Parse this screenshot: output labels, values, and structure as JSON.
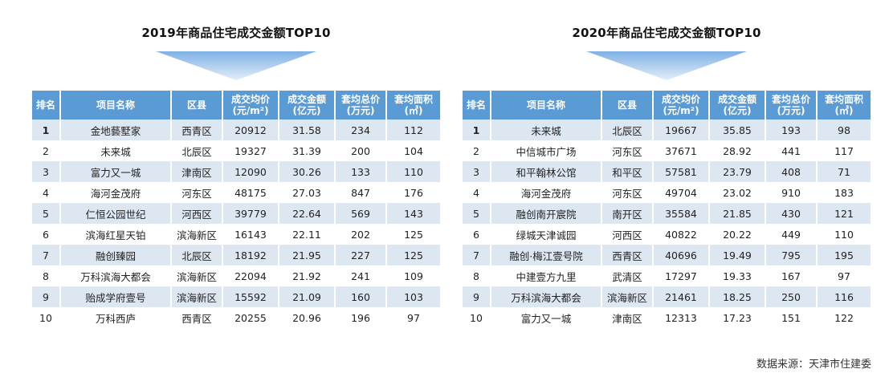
{
  "headers": [
    "排名",
    "项目名称",
    "区县",
    [
      "成交均价",
      "(元/m²)"
    ],
    [
      "成交金额",
      "(亿元)"
    ],
    [
      "套均总价",
      "(万元)"
    ],
    [
      "套均面积",
      "(㎡)"
    ]
  ],
  "tables": [
    {
      "title": "2019年商品住宅成交金额TOP10",
      "rows": [
        {
          "rank": "1",
          "name": "金地藝墅家",
          "district": "西青区",
          "price": "20912",
          "amount": "31.58",
          "total": "234",
          "area": "112"
        },
        {
          "rank": "2",
          "name": "未来城",
          "district": "北辰区",
          "price": "19327",
          "amount": "31.39",
          "total": "200",
          "area": "104"
        },
        {
          "rank": "3",
          "name": "富力又一城",
          "district": "津南区",
          "price": "12090",
          "amount": "30.26",
          "total": "133",
          "area": "110"
        },
        {
          "rank": "4",
          "name": "海河金茂府",
          "district": "河东区",
          "price": "48175",
          "amount": "27.03",
          "total": "847",
          "area": "176"
        },
        {
          "rank": "5",
          "name": "仁恒公园世纪",
          "district": "河西区",
          "price": "39779",
          "amount": "22.64",
          "total": "569",
          "area": "143"
        },
        {
          "rank": "6",
          "name": "滨海红星天铂",
          "district": "滨海新区",
          "price": "16143",
          "amount": "22.11",
          "total": "202",
          "area": "125"
        },
        {
          "rank": "7",
          "name": "融创臻园",
          "district": "北辰区",
          "price": "18192",
          "amount": "21.95",
          "total": "227",
          "area": "125"
        },
        {
          "rank": "8",
          "name": "万科滨海大都会",
          "district": "滨海新区",
          "price": "22094",
          "amount": "21.92",
          "total": "241",
          "area": "109"
        },
        {
          "rank": "9",
          "name": "贻成学府壹号",
          "district": "滨海新区",
          "price": "15592",
          "amount": "21.09",
          "total": "160",
          "area": "103"
        },
        {
          "rank": "10",
          "name": "万科西庐",
          "district": "西青区",
          "price": "20255",
          "amount": "20.96",
          "total": "196",
          "area": "97"
        }
      ]
    },
    {
      "title": "2020年商品住宅成交金额TOP10",
      "rows": [
        {
          "rank": "1",
          "name": "未来城",
          "district": "北辰区",
          "price": "19667",
          "amount": "35.85",
          "total": "193",
          "area": "98"
        },
        {
          "rank": "2",
          "name": "中信城市广场",
          "district": "河东区",
          "price": "37671",
          "amount": "28.92",
          "total": "441",
          "area": "117"
        },
        {
          "rank": "3",
          "name": "和平翰林公馆",
          "district": "和平区",
          "price": "57581",
          "amount": "23.79",
          "total": "408",
          "area": "71"
        },
        {
          "rank": "4",
          "name": "海河金茂府",
          "district": "河东区",
          "price": "49704",
          "amount": "23.02",
          "total": "910",
          "area": "183"
        },
        {
          "rank": "5",
          "name": "融创南开宸院",
          "district": "南开区",
          "price": "35584",
          "amount": "21.85",
          "total": "430",
          "area": "121"
        },
        {
          "rank": "6",
          "name": "绿城天津诚园",
          "district": "河西区",
          "price": "40822",
          "amount": "20.22",
          "total": "449",
          "area": "110"
        },
        {
          "rank": "7",
          "name": "融创·梅江壹号院",
          "district": "西青区",
          "price": "40696",
          "amount": "19.49",
          "total": "795",
          "area": "195"
        },
        {
          "rank": "8",
          "name": "中建壹方九里",
          "district": "武清区",
          "price": "17297",
          "amount": "19.33",
          "total": "167",
          "area": "97"
        },
        {
          "rank": "9",
          "name": "万科滨海大都会",
          "district": "滨海新区",
          "price": "21461",
          "amount": "18.25",
          "total": "250",
          "area": "116"
        },
        {
          "rank": "10",
          "name": "富力又一城",
          "district": "津南区",
          "price": "12313",
          "amount": "17.23",
          "total": "151",
          "area": "122"
        }
      ]
    }
  ],
  "source": "数据来源：天津市住建委",
  "colors": {
    "header_bg": "#5b9bd5",
    "stripe": "#dde7f2",
    "arrow": "#a9c8ea"
  }
}
